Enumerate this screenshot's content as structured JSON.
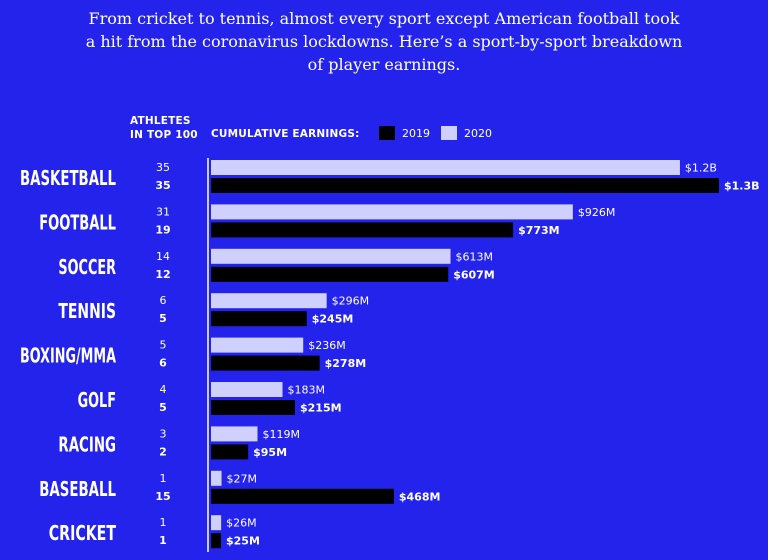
{
  "intro_text": "From cricket to tennis, almost every sport except American football took a hit from the coronavirus lockdowns. Here’s a sport-by-sport breakdown of player earnings.",
  "header": {
    "athletes_line1": "ATHLETES",
    "athletes_line2": "IN TOP 100",
    "cumulative_label": "CUMULATIVE EARNINGS:"
  },
  "legend": [
    {
      "name": "2019",
      "color": "#000000"
    },
    {
      "name": "2020",
      "color": "#d0d0ff"
    }
  ],
  "colors": {
    "background": "#2323ec",
    "bar_2020": "#d0d0ff",
    "bar_2019": "#000000",
    "text": "#ffffff",
    "axis_line": "#ffffff"
  },
  "chart_data": {
    "type": "bar",
    "orientation": "horizontal",
    "categories": [
      "BASKETBALL",
      "FOOTBALL",
      "SOCCER",
      "TENNIS",
      "BOXING/MMA",
      "GOLF",
      "RACING",
      "BASEBALL",
      "CRICKET"
    ],
    "series": [
      {
        "name": "2020",
        "values": [
          1200,
          926,
          613,
          296,
          236,
          183,
          119,
          27,
          26
        ],
        "labels": [
          "$1.2B",
          "$926M",
          "$613M",
          "$296M",
          "$236M",
          "$183M",
          "$119M",
          "$27M",
          "$26M"
        ],
        "athletes": [
          "35",
          "31",
          "14",
          "6",
          "5",
          "4",
          "3",
          "1",
          "1"
        ]
      },
      {
        "name": "2019",
        "values": [
          1300,
          773,
          607,
          245,
          278,
          215,
          95,
          468,
          25
        ],
        "labels": [
          "$1.3B",
          "$773M",
          "$607M",
          "$245M",
          "$278M",
          "$215M",
          "$95M",
          "$468M",
          "$25M"
        ],
        "athletes": [
          "35",
          "19",
          "12",
          "5",
          "6",
          "5",
          "2",
          "15",
          "1"
        ]
      }
    ],
    "value_unit": "$M",
    "xlim": [
      0,
      1300
    ]
  }
}
